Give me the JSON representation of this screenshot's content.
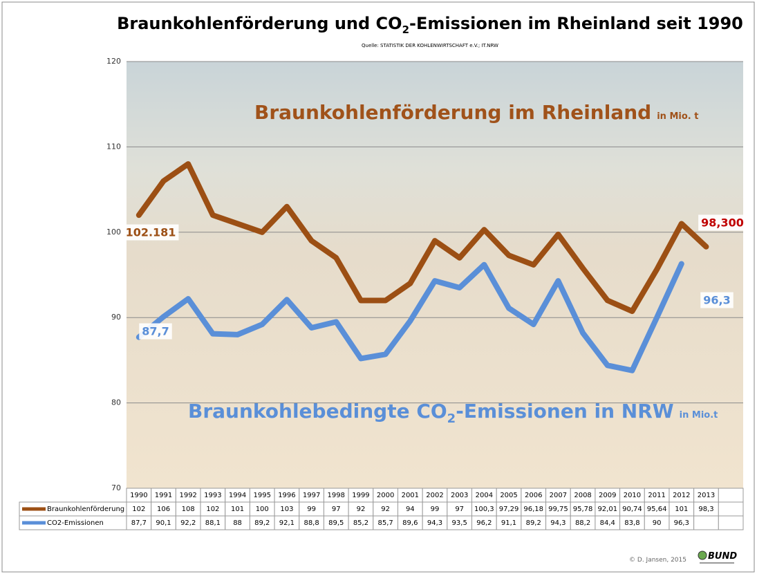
{
  "chart_data": {
    "type": "line",
    "title": [
      "Braunkohlenförderung und CO",
      "2",
      "-Emissionen im Rheinland seit 1990"
    ],
    "subtitle": "Quelle: STATISTIK DER KOHLENWIRTSCHAFT e.V.; IT.NRW",
    "series_labels": [
      {
        "text": [
          "Braunkohlenförderung im Rheinland"
        ],
        "unit": "in Mio. t"
      },
      {
        "text": [
          "Braunkohlebedingte CO",
          "2",
          "-Emissionen in NRW"
        ],
        "unit": "in Mio.t"
      }
    ],
    "categories": [
      "1990",
      "1991",
      "1992",
      "1993",
      "1994",
      "1995",
      "1996",
      "1997",
      "1998",
      "1999",
      "2000",
      "2001",
      "2002",
      "2003",
      "2004",
      "2005",
      "2006",
      "2007",
      "2008",
      "2009",
      "2010",
      "2011",
      "2012",
      "2013"
    ],
    "series": [
      {
        "name": "Braunkohlenförderung",
        "color": "#9c4f14",
        "values": [
          102,
          106,
          108,
          102,
          101,
          100,
          103,
          99,
          97,
          92,
          92,
          94,
          99,
          97,
          100.3,
          97.29,
          96.18,
          99.75,
          95.78,
          92.01,
          90.74,
          95.64,
          101,
          98.3
        ],
        "value_labels": [
          "102",
          "106",
          "108",
          "102",
          "101",
          "100",
          "103",
          "99",
          "97",
          "92",
          "92",
          "94",
          "99",
          "97",
          "100,3",
          "97,29",
          "96,18",
          "99,75",
          "95,78",
          "92,01",
          "90,74",
          "95,64",
          "101",
          "98,3"
        ]
      },
      {
        "name": "CO2-Emissionen",
        "color": "#5a8fd8",
        "values": [
          87.7,
          90.1,
          92.2,
          88.1,
          88,
          89.2,
          92.1,
          88.8,
          89.5,
          85.2,
          85.7,
          89.6,
          94.3,
          93.5,
          96.2,
          91.1,
          89.2,
          94.3,
          88.2,
          84.4,
          83.8,
          90,
          96.3,
          null
        ],
        "value_labels": [
          "87,7",
          "90,1",
          "92,2",
          "88,1",
          "88",
          "89,2",
          "92,1",
          "88,8",
          "89,5",
          "85,2",
          "85,7",
          "89,6",
          "94,3",
          "93,5",
          "96,2",
          "91,1",
          "89,2",
          "94,3",
          "88,2",
          "84,4",
          "83,8",
          "90",
          "96,3",
          null
        ]
      }
    ],
    "annotations": [
      {
        "text": "102.181",
        "color": "#9c4f14"
      },
      {
        "text": "98,300",
        "color": "#c00000"
      },
      {
        "text": "87,7",
        "color": "#5a8fd8"
      },
      {
        "text": "96,3",
        "color": "#5a8fd8"
      }
    ],
    "ylim": [
      70,
      120
    ],
    "yticks": [
      70,
      80,
      90,
      100,
      110,
      120
    ],
    "grid": true,
    "footer": {
      "credit": "© D. Jansen, 2015",
      "logo": "BUND"
    }
  }
}
